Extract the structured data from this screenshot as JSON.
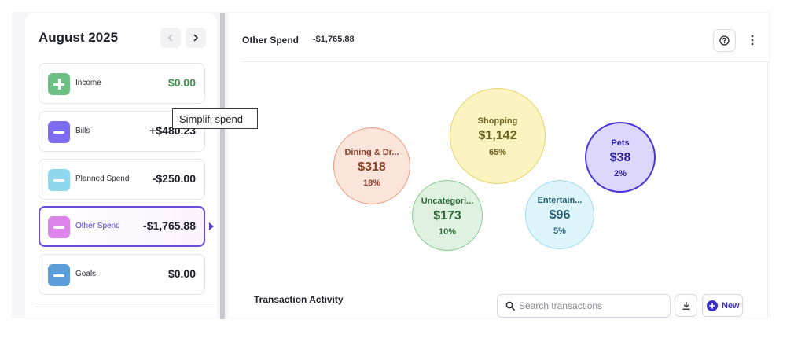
{
  "sidebar": {
    "month": "August 2025",
    "prev_icon": "chevron-left-icon",
    "next_icon": "chevron-right-icon",
    "items": [
      {
        "label": "Income",
        "amount": "$0.00",
        "color": "#6cc083",
        "icon": "plus-icon"
      },
      {
        "label": "Bills",
        "amount": "+$480.23",
        "color": "#7b6cf0",
        "icon": "minus-icon"
      },
      {
        "label": "Planned Spend",
        "amount": "-$250.00",
        "color": "#8cd8ef",
        "icon": "minus-icon"
      },
      {
        "label": "Other Spend",
        "amount": "-$1,765.88",
        "color": "#dc84ea",
        "icon": "minus-icon",
        "selected": true
      },
      {
        "label": "Goals",
        "amount": "$0.00",
        "color": "#5b9dd8",
        "icon": "minus-icon"
      }
    ]
  },
  "tooltip": {
    "text": "Simplifi spend"
  },
  "main": {
    "title": "Other Spend",
    "amount": "-$1,765.88",
    "help_icon": "question-circle-icon",
    "more_icon": "more-vertical-icon",
    "categories": [
      {
        "name": "Dining & Dr...",
        "amount": "$318",
        "percent": "18%",
        "fill": "#fbe4da",
        "stroke": "#ed9a7d",
        "text": "#8a3f26"
      },
      {
        "name": "Shopping",
        "amount": "$1,142",
        "percent": "65%",
        "fill": "#fbf3c0",
        "stroke": "#e6d46a",
        "text": "#6e6420"
      },
      {
        "name": "Uncategori...",
        "amount": "$173",
        "percent": "10%",
        "fill": "#dff1e1",
        "stroke": "#8ccc95",
        "text": "#2f6b3a"
      },
      {
        "name": "Entertain...",
        "amount": "$96",
        "percent": "5%",
        "fill": "#def4fb",
        "stroke": "#9edaee",
        "text": "#245e70"
      },
      {
        "name": "Pets",
        "amount": "$38",
        "percent": "2%",
        "fill": "#dcd7fb",
        "stroke": "#4a36d6",
        "text": "#2d1fa0"
      }
    ],
    "transactions": {
      "title": "Transaction Activity",
      "search_placeholder": "Search transactions",
      "download_icon": "download-icon",
      "new_label": "New"
    }
  },
  "colors": {
    "accent": "#5a3fd0",
    "new_button": "#3a30c8"
  }
}
